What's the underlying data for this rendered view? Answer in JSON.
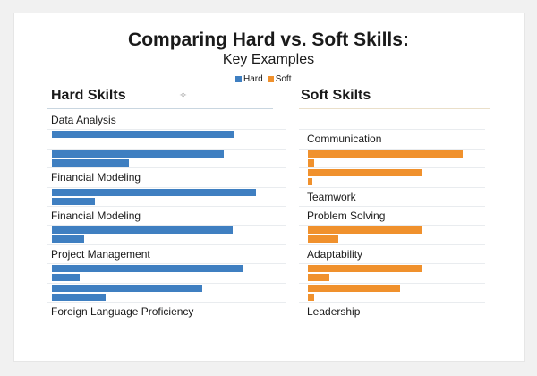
{
  "chart_data": {
    "type": "bar",
    "orientation": "horizontal",
    "title": "Comparing Hard vs. Soft Skills:",
    "subtitle": "Key Examples",
    "legend": {
      "placement": "top-center",
      "entries": [
        {
          "name": "Hard",
          "color": "#3f7fc1"
        },
        {
          "name": "Soft",
          "color": "#f0912d"
        }
      ]
    },
    "grid": false,
    "value_scale": [
      0,
      100
    ],
    "panels": [
      {
        "heading": "Hard Skilts",
        "color": "#3f7fc1",
        "rule_color": "#c9d6e0",
        "rows": [
          {
            "label": "Data Analysis"
          },
          {
            "values": [
              85
            ]
          },
          {
            "values": [
              80,
              36
            ]
          },
          {
            "label": "Financial Modeling"
          },
          {
            "values": [
              95,
              20
            ]
          },
          {
            "label": "Financial Modeling"
          },
          {
            "values": [
              84,
              15
            ]
          },
          {
            "label": "Project Management"
          },
          {
            "values": [
              89,
              13
            ]
          },
          {
            "values": [
              70,
              25
            ]
          },
          {
            "label": "Foreign Language Proficiency"
          }
        ]
      },
      {
        "heading": "Soft Skilts",
        "color": "#f0912d",
        "rule_color": "#eadfc9",
        "rows": [
          {},
          {
            "label": "Communication"
          },
          {
            "values": [
              72,
              3
            ]
          },
          {
            "values": [
              53,
              2
            ]
          },
          {
            "label": "Teamwork"
          },
          {
            "label": "Problem Solving"
          },
          {
            "values": [
              53,
              14
            ]
          },
          {
            "label": "Adaptability"
          },
          {
            "values": [
              53,
              10
            ]
          },
          {
            "values": [
              43,
              3
            ]
          },
          {
            "label": "Leadership"
          }
        ]
      }
    ]
  },
  "icons": {
    "decor": "sparkle-icon"
  }
}
